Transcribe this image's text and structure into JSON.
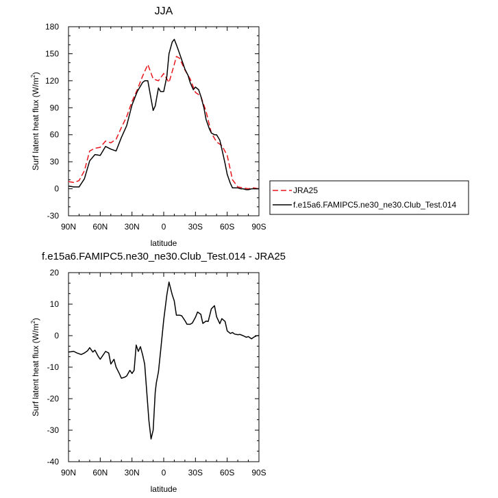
{
  "chart_data": [
    {
      "type": "line",
      "title": "JJA",
      "xlabel": "latitude",
      "ylabel": "Surf latent heat flux (W/m",
      "ylabel_sup": "2",
      "ylabel_close": ")",
      "xlim": [
        90,
        -90
      ],
      "ylim": [
        -30,
        180
      ],
      "xticks": [
        90,
        60,
        30,
        0,
        -30,
        -60,
        -90
      ],
      "xticklabels": [
        "90N",
        "60N",
        "30N",
        "0",
        "30S",
        "60S",
        "90S"
      ],
      "yticks": [
        -30,
        0,
        30,
        60,
        90,
        120,
        150,
        180
      ],
      "yticklabels": [
        "-30",
        "0",
        "30",
        "60",
        "90",
        "120",
        "150",
        "180"
      ],
      "legend_position": "right",
      "series": [
        {
          "name": "JRA25",
          "color": "#e8141b",
          "style": "dashed",
          "x": [
            90,
            85,
            80,
            75,
            70,
            65,
            60,
            55,
            50,
            45,
            40,
            35,
            30,
            25,
            20,
            15,
            10,
            5,
            0,
            -5,
            -10,
            -12,
            -15,
            -20,
            -25,
            -30,
            -35,
            -40,
            -45,
            -50,
            -55,
            -60,
            -65,
            -70,
            -75,
            -80,
            -85,
            -90
          ],
          "y": [
            8,
            7,
            9,
            20,
            42,
            45,
            46,
            53,
            51,
            55,
            68,
            80,
            97,
            110,
            125,
            138,
            122,
            120,
            128,
            118,
            138,
            147,
            145,
            132,
            122,
            107,
            103,
            86,
            62,
            52,
            48,
            37,
            10,
            2,
            1,
            0,
            1,
            0
          ]
        },
        {
          "name": "f.e15a6.FAMIPC5.ne30_ne30.Club_Test.014",
          "color": "#000000",
          "style": "solid",
          "x": [
            90,
            85,
            80,
            75,
            70,
            65,
            60,
            55,
            50,
            45,
            40,
            35,
            30,
            25,
            20,
            18,
            15,
            12,
            10,
            8,
            5,
            3,
            0,
            -3,
            -5,
            -8,
            -10,
            -12,
            -15,
            -18,
            -20,
            -23,
            -25,
            -28,
            -30,
            -33,
            -35,
            -38,
            -40,
            -43,
            -45,
            -48,
            -50,
            -53,
            -55,
            -58,
            -60,
            -63,
            -65,
            -68,
            -70,
            -73,
            -75,
            -78,
            -80,
            -83,
            -85,
            -88,
            -90
          ],
          "y": [
            3,
            2,
            2,
            11,
            31,
            38,
            37,
            47,
            44,
            42,
            57,
            70,
            93,
            108,
            118,
            120,
            120,
            100,
            87,
            92,
            112,
            108,
            108,
            125,
            150,
            163,
            166,
            160,
            150,
            140,
            133,
            126,
            118,
            110,
            113,
            110,
            103,
            90,
            77,
            67,
            62,
            60,
            60,
            54,
            44,
            28,
            16,
            6,
            1,
            1,
            1,
            0,
            0,
            -1,
            -1,
            0,
            0,
            0,
            0
          ]
        }
      ]
    },
    {
      "type": "line",
      "title": "f.e15a6.FAMIPC5.ne30_ne30.Club_Test.014 - JRA25",
      "xlabel": "latitude",
      "ylabel": "Surf latent heat flux (W/m",
      "ylabel_sup": "2",
      "ylabel_close": ")",
      "xlim": [
        90,
        -90
      ],
      "ylim": [
        -40,
        20
      ],
      "xticks": [
        90,
        60,
        30,
        0,
        -30,
        -60,
        -90
      ],
      "xticklabels": [
        "90N",
        "60N",
        "30N",
        "0",
        "30S",
        "60S",
        "90S"
      ],
      "yticks": [
        -40,
        -30,
        -20,
        -10,
        0,
        10,
        20
      ],
      "yticklabels": [
        "-40",
        "-30",
        "-20",
        "-10",
        "0",
        "10",
        "20"
      ],
      "series": [
        {
          "color": "#000000",
          "style": "solid",
          "x": [
            90,
            85,
            82,
            78,
            75,
            72,
            70,
            67,
            65,
            62,
            60,
            58,
            55,
            52,
            50,
            47,
            45,
            42,
            40,
            37,
            35,
            32,
            30,
            28,
            26,
            24,
            22,
            20,
            18,
            16,
            14,
            12,
            10,
            8,
            7,
            5,
            3,
            0,
            -3,
            -5,
            -8,
            -10,
            -12,
            -15,
            -17,
            -20,
            -22,
            -25,
            -27,
            -30,
            -32,
            -35,
            -37,
            -40,
            -42,
            -45,
            -48,
            -50,
            -53,
            -55,
            -58,
            -60,
            -63,
            -65,
            -67,
            -70,
            -72,
            -75,
            -78,
            -80,
            -83,
            -85,
            -88,
            -90
          ],
          "y": [
            -5.2,
            -5,
            -5.5,
            -6,
            -5.5,
            -4.8,
            -3.8,
            -5.2,
            -4.6,
            -6.5,
            -7.5,
            -6.5,
            -5,
            -5.5,
            -9,
            -7.5,
            -10,
            -12,
            -13.5,
            -13.2,
            -12.8,
            -11,
            -12,
            -11,
            -3,
            -5,
            -3.5,
            -6,
            -9,
            -18,
            -27,
            -32.8,
            -30,
            -18,
            -15,
            -11.5,
            -5,
            5,
            13,
            17,
            13,
            11,
            6.5,
            6.5,
            6.3,
            4.8,
            3.6,
            3.6,
            4,
            5.8,
            7.5,
            6.8,
            3.9,
            4.6,
            4.5,
            8.5,
            9.5,
            6,
            3.8,
            5.4,
            4.5,
            1.5,
            0.7,
            1,
            0.5,
            0.3,
            0.4,
            0,
            -0.5,
            -0.3,
            -1,
            -0.5,
            0,
            0
          ]
        }
      ]
    }
  ]
}
